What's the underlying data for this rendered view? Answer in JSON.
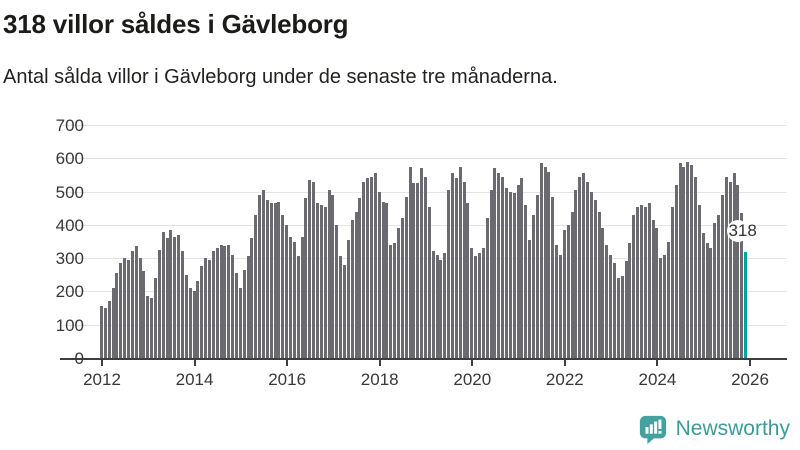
{
  "header": {
    "title": "318 villor såldes i Gävleborg",
    "subtitle": "Antal sålda villor i Gävleborg under de senaste tre månaderna."
  },
  "chart_data": {
    "type": "bar",
    "title": "318 villor såldes i Gävleborg",
    "subtitle": "Antal sålda villor i Gävleborg under de senaste tre månaderna.",
    "frequency": "monthly",
    "x_start": "2012-01",
    "x_end": "2025-12",
    "xlabel": "",
    "ylabel": "",
    "ylim": [
      0,
      700
    ],
    "yticks": [
      0,
      100,
      200,
      300,
      400,
      500,
      600,
      700
    ],
    "xticks": [
      2012,
      2014,
      2016,
      2018,
      2020,
      2022,
      2024,
      2026
    ],
    "grid": true,
    "bar_color": "#6a6a70",
    "highlight": {
      "index": 167,
      "value": 318,
      "label": "318",
      "color": "#00a29b"
    },
    "series": [
      {
        "name": "Antal sålda villor",
        "values": [
          155,
          150,
          170,
          210,
          255,
          285,
          300,
          295,
          320,
          335,
          300,
          260,
          185,
          180,
          240,
          325,
          380,
          360,
          385,
          365,
          370,
          320,
          250,
          210,
          200,
          230,
          275,
          300,
          295,
          320,
          330,
          340,
          335,
          340,
          310,
          255,
          210,
          265,
          305,
          360,
          430,
          490,
          505,
          475,
          465,
          465,
          470,
          430,
          400,
          365,
          350,
          305,
          365,
          480,
          535,
          530,
          465,
          460,
          455,
          505,
          490,
          400,
          305,
          280,
          355,
          415,
          440,
          480,
          530,
          540,
          545,
          555,
          500,
          470,
          465,
          340,
          345,
          390,
          420,
          485,
          575,
          525,
          525,
          570,
          545,
          455,
          320,
          310,
          295,
          315,
          505,
          555,
          540,
          575,
          530,
          465,
          330,
          305,
          315,
          330,
          420,
          505,
          570,
          555,
          545,
          510,
          500,
          495,
          520,
          540,
          460,
          355,
          430,
          490,
          585,
          575,
          560,
          485,
          340,
          310,
          385,
          400,
          440,
          505,
          545,
          555,
          530,
          500,
          475,
          440,
          390,
          340,
          310,
          285,
          240,
          245,
          290,
          345,
          430,
          455,
          460,
          455,
          465,
          415,
          390,
          300,
          310,
          350,
          455,
          520,
          585,
          575,
          590,
          580,
          545,
          460,
          375,
          345,
          330,
          405,
          430,
          490,
          545,
          530,
          555,
          520,
          435,
          318
        ]
      }
    ]
  },
  "footer": {
    "brand": "Newsworthy",
    "logo_icon": "bar-chart-speech-bubble-icon",
    "brand_color": "#3b9b97",
    "icon_color": "#45a19d"
  }
}
